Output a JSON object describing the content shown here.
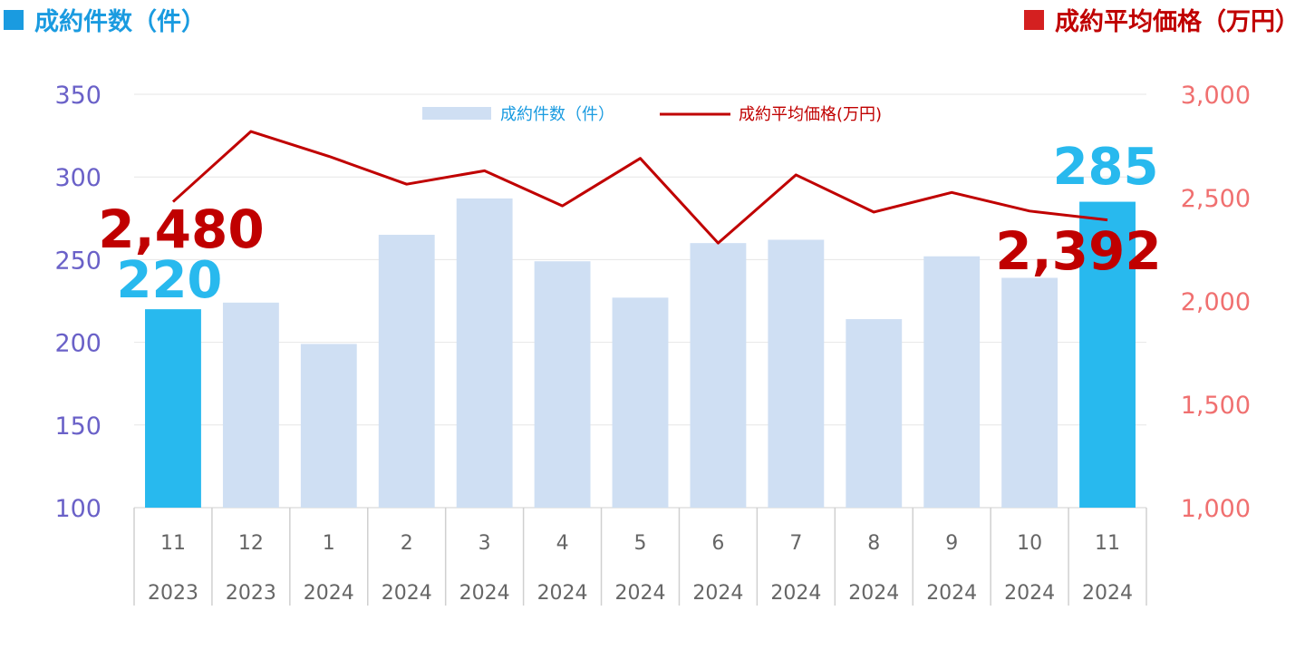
{
  "header": {
    "left_label": "成約件数（件）",
    "right_label": "成約平均価格（万円）"
  },
  "colors": {
    "highlight_bar": "#28b9ee",
    "bar": "#cfdff3",
    "line": "#c00000",
    "left_axis_text": "#6a61c8",
    "right_axis_text": "#f07070",
    "left_header": "#1a9be0",
    "right_header": "#c00000"
  },
  "chart_data": {
    "type": "bar",
    "categories": [
      [
        "11",
        "2023"
      ],
      [
        "12",
        "2023"
      ],
      [
        "1",
        "2024"
      ],
      [
        "2",
        "2024"
      ],
      [
        "3",
        "2024"
      ],
      [
        "4",
        "2024"
      ],
      [
        "5",
        "2024"
      ],
      [
        "6",
        "2024"
      ],
      [
        "7",
        "2024"
      ],
      [
        "8",
        "2024"
      ],
      [
        "9",
        "2024"
      ],
      [
        "10",
        "2024"
      ],
      [
        "11",
        "2024"
      ]
    ],
    "series": [
      {
        "name": "成約件数（件）",
        "type": "bar",
        "axis": "left",
        "values": [
          220,
          224,
          199,
          265,
          287,
          249,
          227,
          260,
          262,
          214,
          252,
          239,
          285
        ],
        "highlight": [
          0,
          12
        ]
      },
      {
        "name": "成約平均価格(万円)",
        "type": "line",
        "axis": "right",
        "values": [
          2480,
          2820,
          2700,
          2565,
          2630,
          2460,
          2690,
          2280,
          2610,
          2430,
          2525,
          2435,
          2392
        ]
      }
    ],
    "left_axis": {
      "min": 100,
      "max": 350,
      "ticks": [
        "350",
        "300",
        "250",
        "200",
        "150",
        "100"
      ]
    },
    "right_axis": {
      "min": 1000,
      "max": 3000,
      "ticks": [
        "3,000",
        "2,500",
        "2,000",
        "1,500",
        "1,000"
      ]
    },
    "data_labels": {
      "bar_first": "220",
      "bar_last": "285",
      "line_first": "2,480",
      "line_last": "2,392"
    },
    "legend_placement": "top-center",
    "grid": true
  }
}
